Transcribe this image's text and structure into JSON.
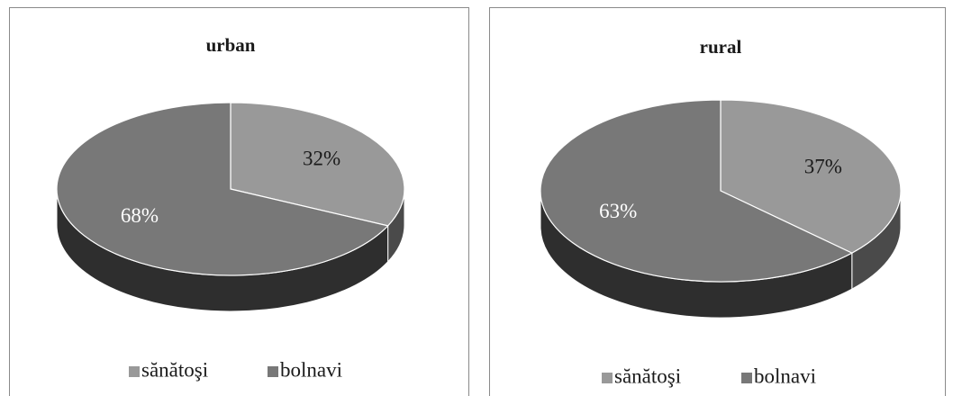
{
  "chart_data": [
    {
      "type": "pie",
      "title": "urban",
      "categories": [
        "sănătoşi",
        "bolnavi"
      ],
      "values": [
        32,
        68
      ],
      "value_labels": [
        "32%",
        "68%"
      ],
      "colors": [
        "#999999",
        "#787878"
      ]
    },
    {
      "type": "pie",
      "title": "rural",
      "categories": [
        "sănătoşi",
        "bolnavi"
      ],
      "values": [
        37,
        63
      ],
      "value_labels": [
        "37%",
        "63%"
      ],
      "colors": [
        "#999999",
        "#787878"
      ]
    }
  ]
}
